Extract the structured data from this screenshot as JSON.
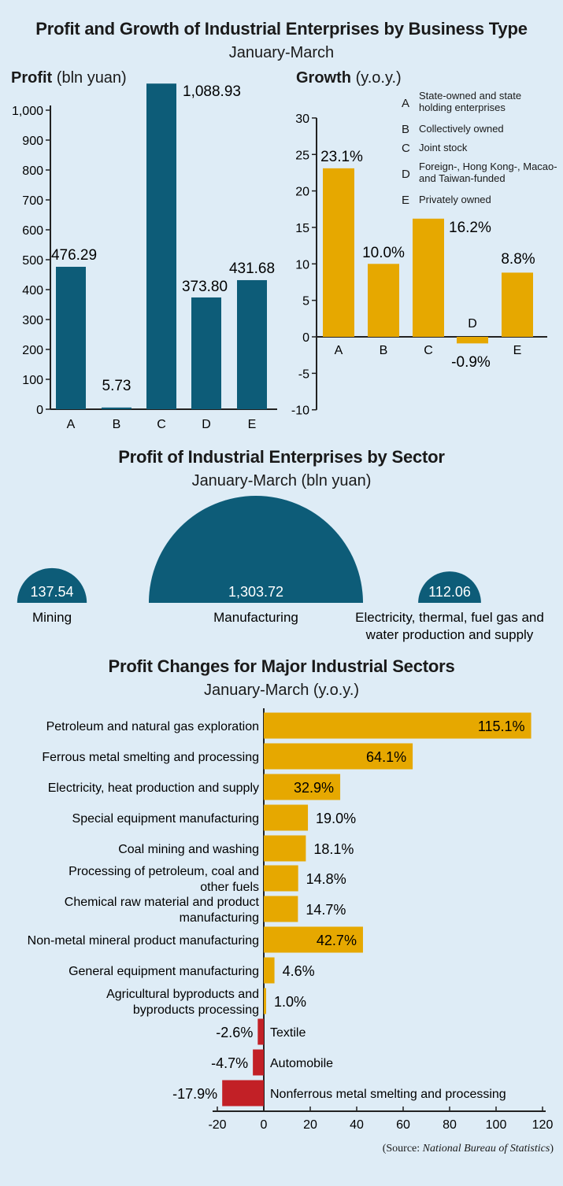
{
  "colors": {
    "teal": "#0d5c78",
    "gold": "#e6a800",
    "red": "#c22026",
    "bg": "#deecf6"
  },
  "header": {
    "title": "Profit and Growth of Industrial Enterprises by Business Type",
    "subtitle": "January-March"
  },
  "profit_panel": {
    "label_bold": "Profit",
    "label_unit": "(bln yuan)"
  },
  "growth_panel": {
    "label_bold": "Growth",
    "label_unit": "(y.o.y.)"
  },
  "legend": [
    {
      "key": "A",
      "text": "State-owned and state holding enterprises"
    },
    {
      "key": "B",
      "text": "Collectively owned"
    },
    {
      "key": "C",
      "text": "Joint stock"
    },
    {
      "key": "D",
      "text": "Foreign-, Hong Kong-, Macao- and  Taiwan-funded"
    },
    {
      "key": "E",
      "text": "Privately owned"
    }
  ],
  "sector_section": {
    "title": "Profit of Industrial Enterprises by Sector",
    "subtitle": "January-March (bln yuan)"
  },
  "changes_section": {
    "title": "Profit Changes for Major Industrial Sectors",
    "subtitle": "January-March (y.o.y.)"
  },
  "source": {
    "prefix": "(Source: ",
    "name": "National Bureau of Statistics",
    "suffix": ")"
  },
  "chart_data": [
    {
      "type": "bar",
      "categories": [
        "A",
        "B",
        "C",
        "D",
        "E"
      ],
      "values": [
        476.29,
        5.73,
        1088.93,
        373.8,
        431.68
      ],
      "value_labels": [
        "476.29",
        "5.73",
        "1,088.93",
        "373.80",
        "431.68"
      ],
      "ylim": [
        0,
        1000
      ],
      "yticks": [
        0,
        100,
        200,
        300,
        400,
        500,
        600,
        700,
        800,
        900,
        1000
      ],
      "ytick_labels": [
        "0",
        "100",
        "200",
        "300",
        "400",
        "500",
        "600",
        "700",
        "800",
        "900",
        "1,000"
      ]
    },
    {
      "type": "bar",
      "categories": [
        "A",
        "B",
        "C",
        "D",
        "E"
      ],
      "values": [
        23.1,
        10.0,
        16.2,
        -0.9,
        8.8
      ],
      "value_labels": [
        "23.1%",
        "10.0%",
        "16.2%",
        "-0.9%",
        "8.8%"
      ],
      "ylim": [
        -10,
        30
      ],
      "yticks": [
        -10,
        -5,
        0,
        5,
        10,
        15,
        20,
        25,
        30
      ],
      "ytick_labels": [
        "-10",
        "-5",
        "0",
        "5",
        "10",
        "15",
        "20",
        "25",
        "30"
      ]
    },
    {
      "type": "pie",
      "categories": [
        "Mining",
        "Manufacturing",
        "Electricity, thermal, fuel gas and water production and supply"
      ],
      "values": [
        137.54,
        1303.72,
        112.06
      ],
      "value_labels": [
        "137.54",
        "1,303.72",
        "112.06"
      ]
    },
    {
      "type": "bar",
      "orientation": "horizontal",
      "categories": [
        "Petroleum  and natural gas exploration",
        "Ferrous metal smelting and processing",
        "Electricity, heat production and supply",
        "Special equipment manufacturing",
        "Coal mining and washing",
        "Processing of petroleum, coal and other fuels",
        "Chemical raw material and product manufacturing",
        "Non-metal mineral product manufacturing",
        "General equipment manufacturing",
        "Agricultural byproducts and byproducts processing",
        "Textile",
        "Automobile",
        "Nonferrous metal smelting and processing"
      ],
      "values": [
        115.1,
        64.1,
        32.9,
        19.0,
        18.1,
        14.8,
        14.7,
        42.7,
        4.6,
        1.0,
        -2.6,
        -4.7,
        -17.9
      ],
      "value_labels": [
        "115.1%",
        "64.1%",
        "32.9%",
        "19.0%",
        "18.1%",
        "14.8%",
        "14.7%",
        "42.7%",
        "4.6%",
        "1.0%",
        "-2.6%",
        "-4.7%",
        "-17.9%"
      ],
      "xlim": [
        -20,
        120
      ],
      "xticks": [
        -20,
        0,
        20,
        40,
        60,
        80,
        100,
        120
      ],
      "xtick_labels": [
        "-20",
        "0",
        "20",
        "40",
        "60",
        "80",
        "100",
        "120"
      ]
    }
  ]
}
